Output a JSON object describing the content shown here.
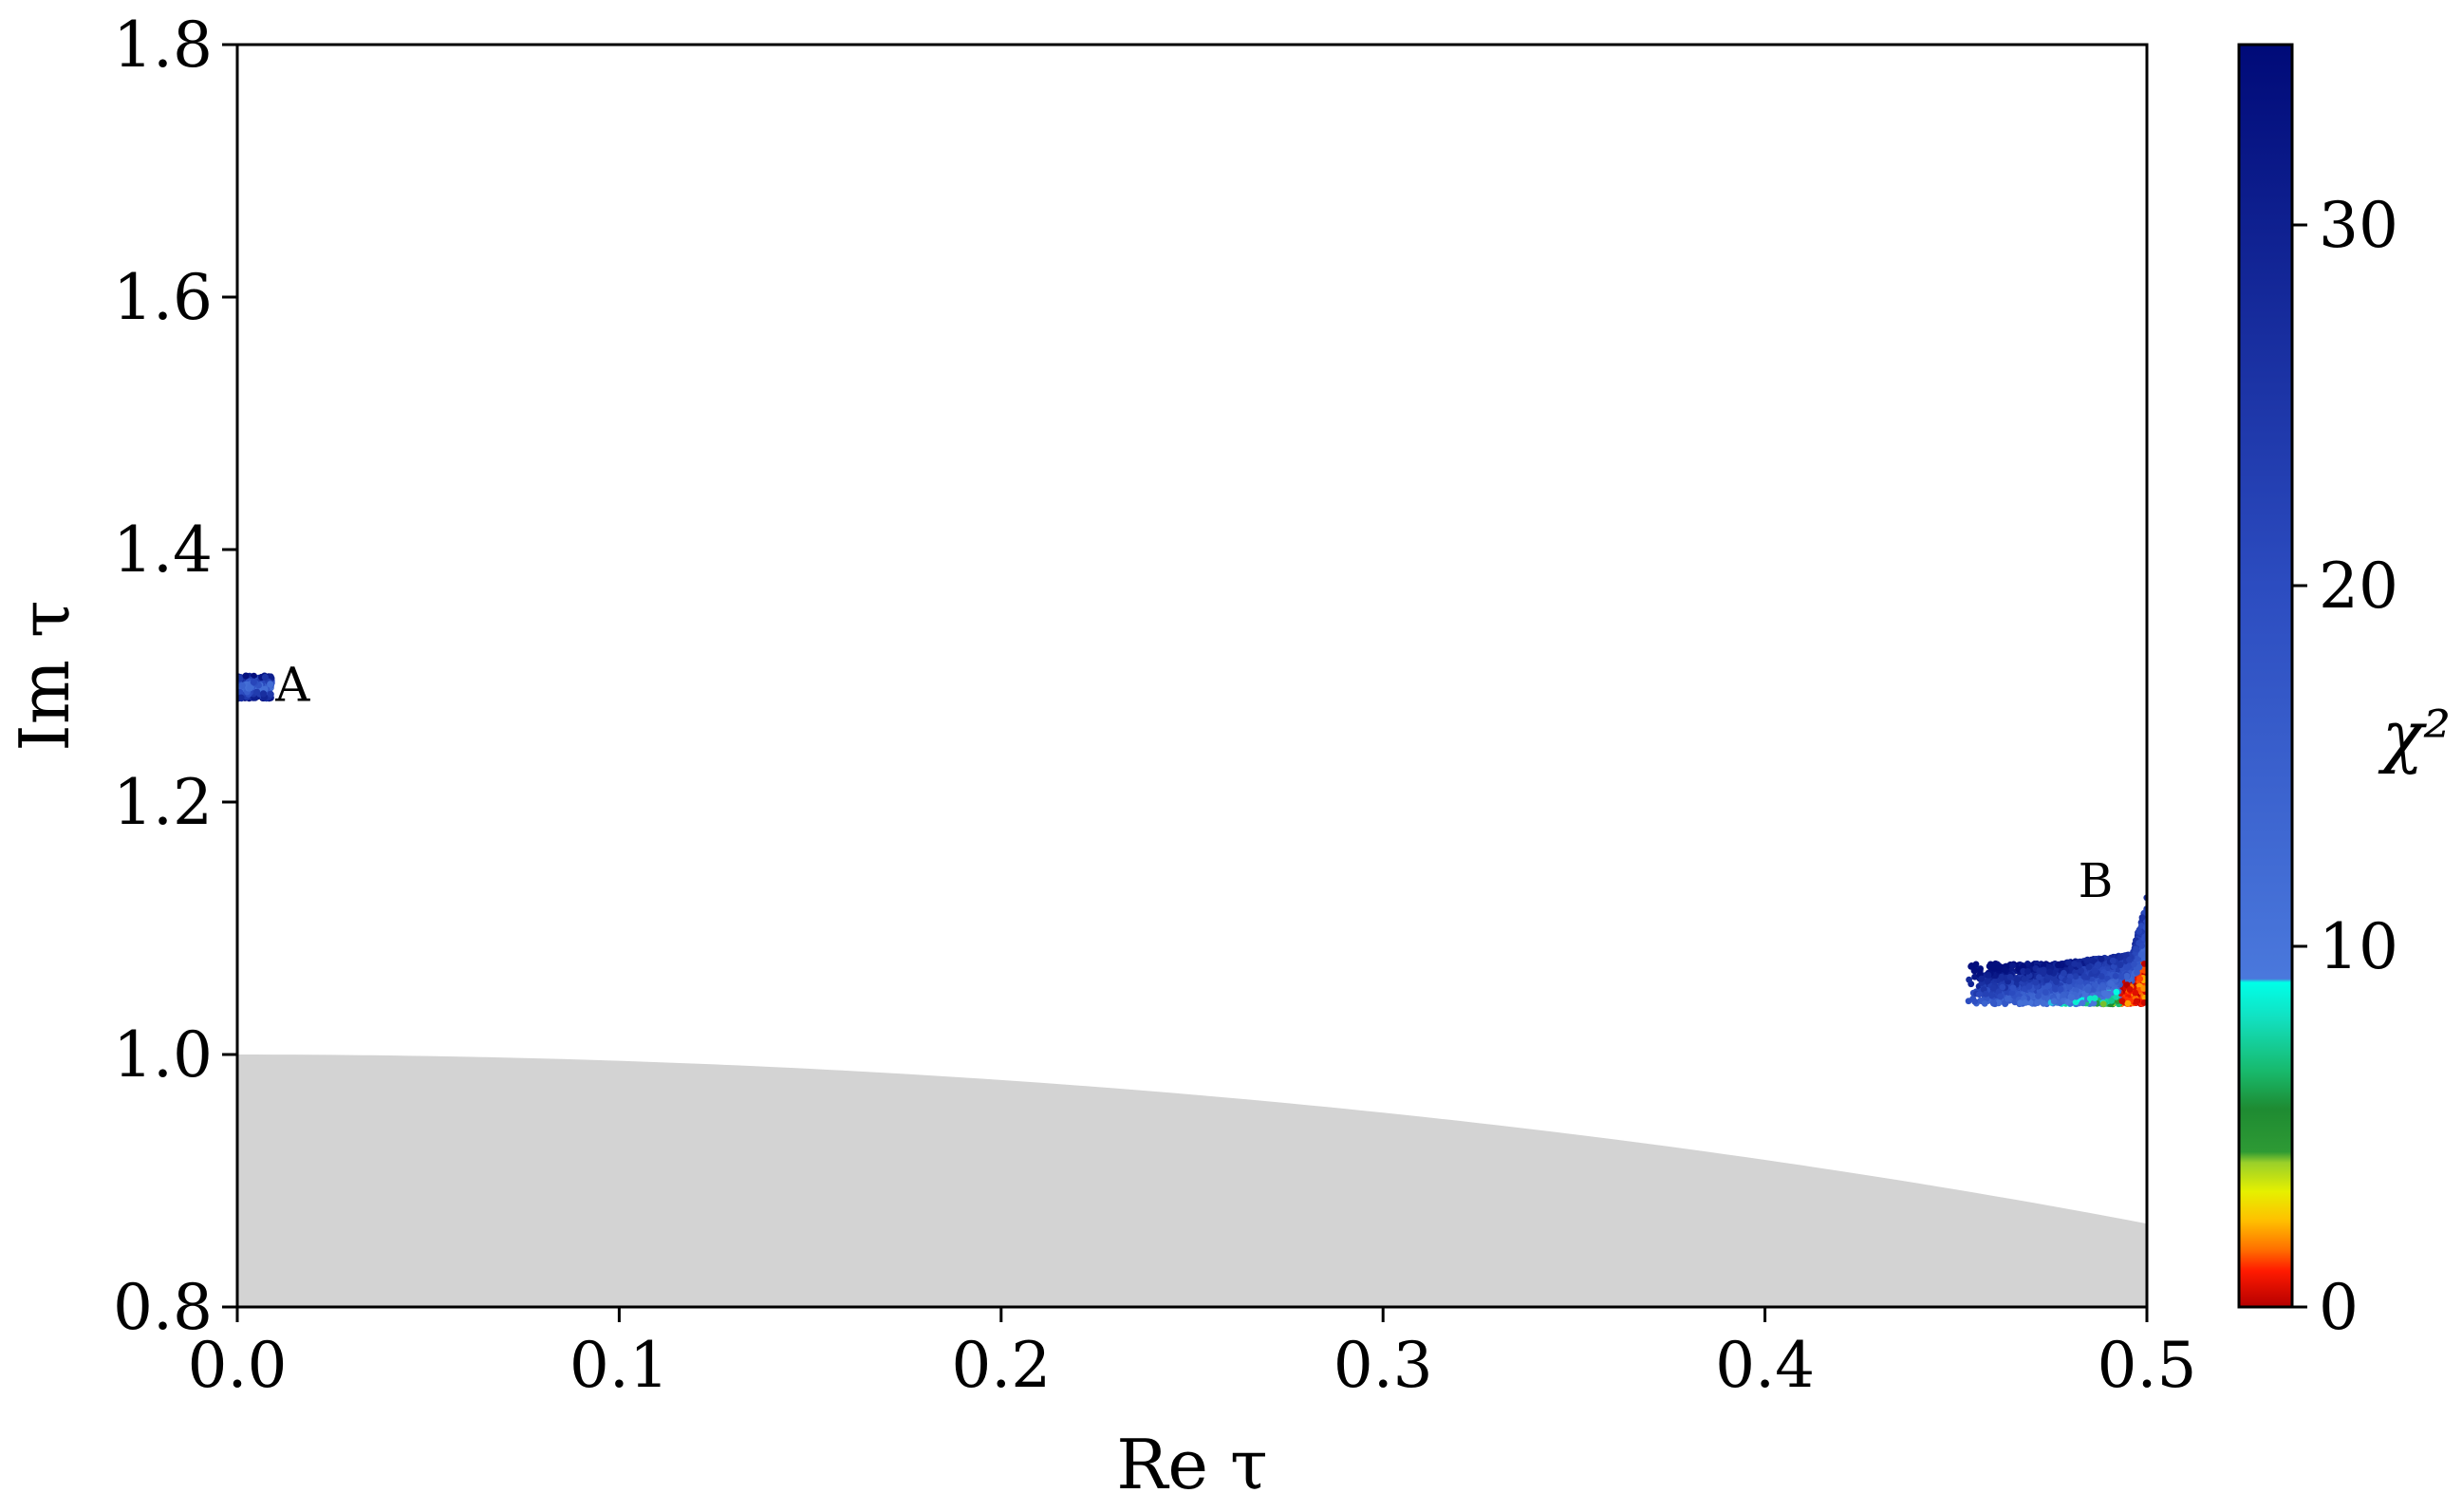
{
  "chart_data": {
    "type": "scatter",
    "title": "",
    "xlabel": "Re τ",
    "ylabel": "Im τ",
    "xlim": [
      0.0,
      0.5
    ],
    "ylim": [
      0.8,
      1.8
    ],
    "x_ticks": [
      "0.0",
      "0.1",
      "0.2",
      "0.3",
      "0.4",
      "0.5"
    ],
    "y_ticks": [
      "0.8",
      "1.0",
      "1.2",
      "1.4",
      "1.6",
      "1.8"
    ],
    "x_tick_values": [
      0.0,
      0.1,
      0.2,
      0.3,
      0.4,
      0.5
    ],
    "y_tick_values": [
      0.8,
      1.0,
      1.2,
      1.4,
      1.6,
      1.8
    ],
    "grid": false,
    "excluded_region": {
      "description": "shaded region below |τ| = 1",
      "color": "#d3d3d3"
    },
    "annotations": [
      {
        "text": "A",
        "x": 0.01,
        "y": 1.28
      },
      {
        "text": "B",
        "x": 0.482,
        "y": 1.125
      }
    ],
    "clusters": [
      {
        "name": "A",
        "x_range": [
          0.0,
          0.009
        ],
        "y_range": [
          1.282,
          1.3
        ],
        "chi2_range": [
          6,
          32
        ]
      },
      {
        "name": "B",
        "x_range": [
          0.453,
          0.5
        ],
        "y_range": [
          1.04,
          1.12
        ],
        "chi2_range": [
          0,
          32
        ]
      }
    ],
    "colorbar": {
      "label": "χ²",
      "ticks": [
        "0",
        "10",
        "20",
        "30"
      ],
      "tick_values": [
        0,
        10,
        20,
        30
      ],
      "range": [
        0,
        35
      ],
      "stops": [
        {
          "value": 0,
          "color": "#b40000"
        },
        {
          "value": 1,
          "color": "#ff1a00"
        },
        {
          "value": 1.6,
          "color": "#ff7000"
        },
        {
          "value": 2.4,
          "color": "#ffc000"
        },
        {
          "value": 3.2,
          "color": "#e6f000"
        },
        {
          "value": 4.0,
          "color": "#9ad02a"
        },
        {
          "value": 4.3,
          "color": "#2e9a34"
        },
        {
          "value": 5.5,
          "color": "#1e8b32"
        },
        {
          "value": 6.5,
          "color": "#18b86a"
        },
        {
          "value": 8.0,
          "color": "#12e0c0"
        },
        {
          "value": 9.0,
          "color": "#00ffe8"
        },
        {
          "value": 9.1,
          "color": "#4a78dc"
        },
        {
          "value": 20,
          "color": "#2c4cc0"
        },
        {
          "value": 35,
          "color": "#000a78"
        }
      ]
    }
  }
}
